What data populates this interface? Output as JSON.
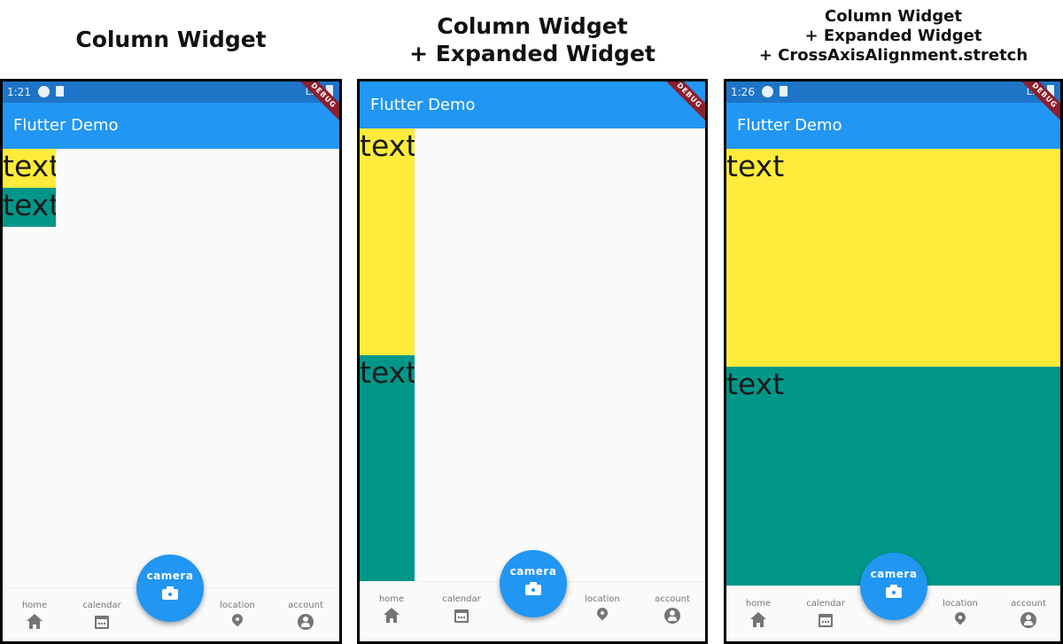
{
  "headings": {
    "left": [
      "Column Widget"
    ],
    "middle": [
      "Column Widget",
      "+ Expanded Widget"
    ],
    "right": [
      "Column Widget",
      "+ Expanded Widget",
      "+ CrossAxisAlignment.stretch"
    ]
  },
  "phones": [
    {
      "status_time": "1:21",
      "status_network": "LTE",
      "app_title": "Flutter Demo",
      "debug_label": "DEBUG",
      "box1_text": "text",
      "box2_text": "text"
    },
    {
      "app_title": "Flutter Demo",
      "debug_label": "DEBUG",
      "box1_text": "text",
      "box2_text": "text"
    },
    {
      "status_time": "1:26",
      "status_network": "LTE",
      "app_title": "Flutter Demo",
      "debug_label": "DEBUG",
      "box1_text": "text",
      "box2_text": "text"
    }
  ],
  "bottom_nav": {
    "items": [
      {
        "label": "home",
        "icon": "home-icon"
      },
      {
        "label": "calendar",
        "icon": "calendar-icon"
      },
      {
        "label": "location",
        "icon": "location-icon"
      },
      {
        "label": "account",
        "icon": "account-icon"
      }
    ],
    "fab_label": "camera",
    "fab_icon": "camera-icon"
  },
  "colors": {
    "app_bar": "#2196f3",
    "status_bar": "#1e74c6",
    "yellow_box": "#ffeb3b",
    "teal_box": "#009688",
    "debug_ribbon": "#8c1f2e"
  }
}
